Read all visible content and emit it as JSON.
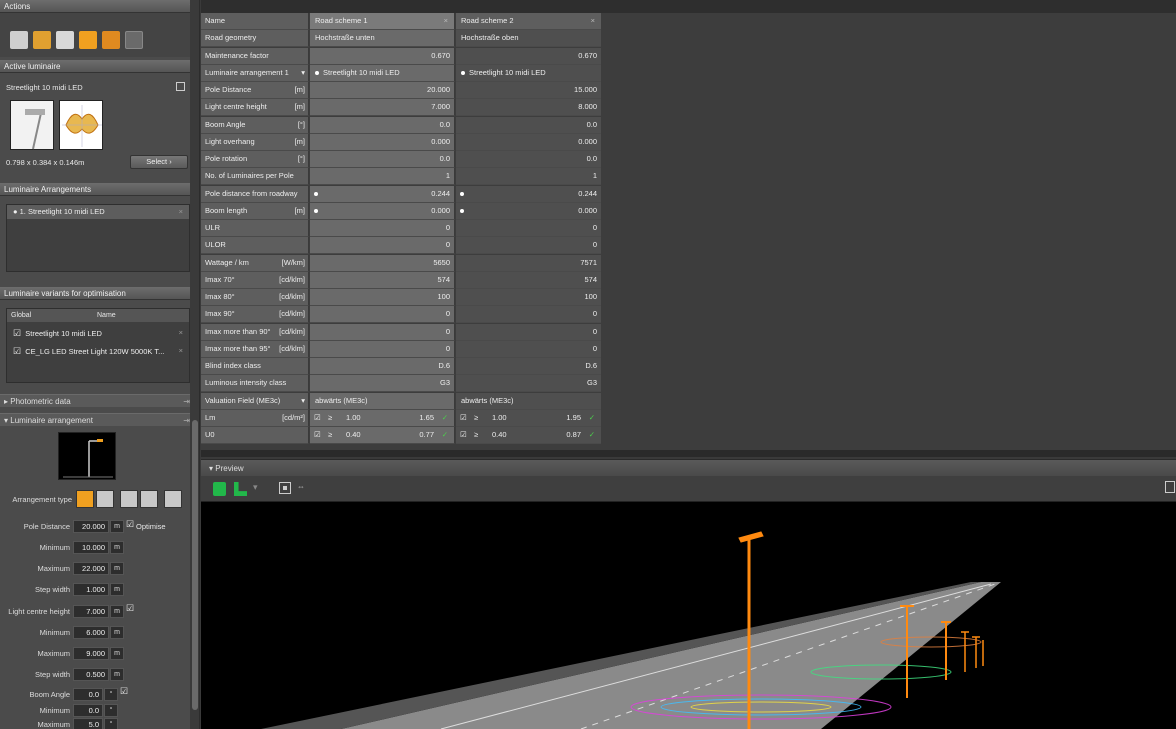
{
  "actions": {
    "title": "Actions",
    "help": "?"
  },
  "active_luminaire": {
    "title": "Active luminaire",
    "name": "Streetlight 10 midi LED",
    "dimensions": "0.798 x 0.384 x 0.146m",
    "select_label": "Select"
  },
  "arrangements": {
    "title": "Luminaire Arrangements",
    "items": [
      {
        "label": "1. Streetlight 10 midi LED"
      }
    ]
  },
  "variants": {
    "title": "Luminaire variants for optimisation",
    "col_global": "Global",
    "col_name": "Name",
    "items": [
      {
        "name": "Streetlight 10 midi LED"
      },
      {
        "name": "CE_LG LED Street Light 120W 5000K T..."
      }
    ]
  },
  "photometric": {
    "title": "Photometric data"
  },
  "luminaire_arrangement": {
    "title": "Luminaire arrangement",
    "arrangement_type_label": "Arrangement type",
    "pole_distance_label": "Pole Distance",
    "pole_distance": "20.000",
    "optimise_label": "Optimise",
    "pd_min_label": "Minimum",
    "pd_min": "10.000",
    "pd_max_label": "Maximum",
    "pd_max": "22.000",
    "pd_step_label": "Step width",
    "pd_step": "1.000",
    "lch_label": "Light centre height",
    "lch": "7.000",
    "lch_min_label": "Minimum",
    "lch_min": "6.000",
    "lch_max_label": "Maximum",
    "lch_max": "9.000",
    "lch_step_label": "Step width",
    "lch_step": "0.500",
    "boom_label": "Boom Angle",
    "boom": "0.0",
    "boom_min_label": "Minimum",
    "boom_min": "0.0",
    "boom_max_label": "Maximum",
    "boom_max": "5.0",
    "unit_m": "m",
    "unit_deg": "°"
  },
  "table": {
    "header": {
      "c0": "Name",
      "c1": "Road scheme 1",
      "c2": "Road scheme 2"
    },
    "rows": [
      {
        "label": "Road geometry",
        "unit": "",
        "v1": "Hochstraße unten",
        "v2": "Hochstraße oben",
        "kind": "txt"
      },
      {
        "label": "Maintenance factor",
        "unit": "",
        "v1": "0.670",
        "v2": "0.670",
        "kind": "num"
      },
      {
        "label": "Luminaire arrangement 1",
        "unit": "▾",
        "v1": "Streetlight 10 midi LED",
        "v2": "Streetlight 10 midi LED",
        "kind": "dot"
      },
      {
        "label": "Pole Distance",
        "unit": "[m]",
        "v1": "20.000",
        "v2": "15.000",
        "kind": "num"
      },
      {
        "label": "Light centre height",
        "unit": "[m]",
        "v1": "7.000",
        "v2": "8.000",
        "kind": "num"
      },
      {
        "label": "Boom Angle",
        "unit": "[°]",
        "v1": "0.0",
        "v2": "0.0",
        "kind": "num"
      },
      {
        "label": "Light overhang",
        "unit": "[m]",
        "v1": "0.000",
        "v2": "0.000",
        "kind": "num"
      },
      {
        "label": "Pole rotation",
        "unit": "[°]",
        "v1": "0.0",
        "v2": "0.0",
        "kind": "num"
      },
      {
        "label": "No. of Luminaires per Pole",
        "unit": "",
        "v1": "1",
        "v2": "1",
        "kind": "num"
      },
      {
        "label": "Pole distance from roadway [m]",
        "unit": "",
        "v1": "0.244",
        "v2": "0.244",
        "kind": "numdot"
      },
      {
        "label": "Boom length",
        "unit": "[m]",
        "v1": "0.000",
        "v2": "0.000",
        "kind": "numdot"
      },
      {
        "label": "ULR",
        "unit": "",
        "v1": "0",
        "v2": "0",
        "kind": "num"
      },
      {
        "label": "ULOR",
        "unit": "",
        "v1": "0",
        "v2": "0",
        "kind": "num"
      },
      {
        "label": "Wattage / km",
        "unit": "[W/km]",
        "v1": "5650",
        "v2": "7571",
        "kind": "num"
      },
      {
        "label": "Imax 70°",
        "unit": "[cd/klm]",
        "v1": "574",
        "v2": "574",
        "kind": "num"
      },
      {
        "label": "Imax 80°",
        "unit": "[cd/klm]",
        "v1": "100",
        "v2": "100",
        "kind": "num"
      },
      {
        "label": "Imax 90°",
        "unit": "[cd/klm]",
        "v1": "0",
        "v2": "0",
        "kind": "num"
      },
      {
        "label": "Imax more than 90°",
        "unit": "[cd/klm]",
        "v1": "0",
        "v2": "0",
        "kind": "num"
      },
      {
        "label": "Imax more than 95°",
        "unit": "[cd/klm]",
        "v1": "0",
        "v2": "0",
        "kind": "num"
      },
      {
        "label": "Blind index class",
        "unit": "",
        "v1": "D.6",
        "v2": "D.6",
        "kind": "num"
      },
      {
        "label": "Luminous intensity class",
        "unit": "",
        "v1": "G3",
        "v2": "G3",
        "kind": "num"
      },
      {
        "label": "Valuation Field (ME3c)",
        "unit": "▾",
        "v1": "abwärts (ME3c)",
        "v2": "abwärts (ME3c)",
        "kind": "txt"
      },
      {
        "label": "Lm",
        "unit": "[cd/m²]",
        "v1": "1.65",
        "v2": "1.95",
        "req1": "1.00",
        "req2": "1.00",
        "kind": "req"
      },
      {
        "label": "U0",
        "unit": "",
        "v1": "0.77",
        "v2": "0.87",
        "req1": "0.40",
        "req2": "0.40",
        "kind": "req"
      }
    ]
  },
  "preview": {
    "title": "Preview"
  },
  "colors": {
    "accent": "#f0a020",
    "pole": "#ff8a10",
    "ok": "#4ccf4c"
  }
}
